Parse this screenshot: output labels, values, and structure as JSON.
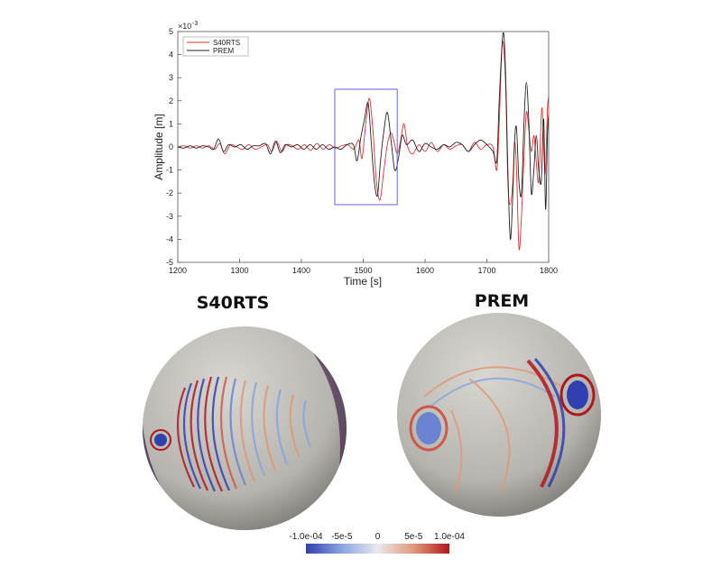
{
  "chart_data": [
    {
      "type": "line",
      "xlabel": "Time [s]",
      "ylabel": "Amplitude [m]",
      "exponent_label": "×10",
      "exponent_power": "-3",
      "xlim": [
        1200,
        1800
      ],
      "ylim": [
        -5,
        5
      ],
      "xticks": [
        "1200",
        "1300",
        "1400",
        "1500",
        "1600",
        "1700",
        "1800"
      ],
      "yticks": [
        "-5",
        "-4",
        "-3",
        "-2",
        "-1",
        "0",
        "1",
        "2",
        "3",
        "4",
        "5"
      ],
      "grid": false,
      "legend_position": "top-left",
      "highlight_box": {
        "x": [
          1454,
          1555
        ],
        "y": [
          -2.5,
          2.5
        ],
        "color": "#6666cc"
      },
      "series": [
        {
          "name": "S40RTS",
          "color": "#e03030",
          "points": [
            [
              1200,
              0
            ],
            [
              1210,
              0.05
            ],
            [
              1220,
              -0.05
            ],
            [
              1230,
              0.05
            ],
            [
              1240,
              -0.05
            ],
            [
              1250,
              0.05
            ],
            [
              1260,
              -0.1
            ],
            [
              1268,
              0.15
            ],
            [
              1276,
              -0.3
            ],
            [
              1285,
              0.1
            ],
            [
              1295,
              0
            ],
            [
              1305,
              -0.1
            ],
            [
              1315,
              0.1
            ],
            [
              1325,
              -0.1
            ],
            [
              1335,
              0
            ],
            [
              1345,
              0.1
            ],
            [
              1352,
              -0.2
            ],
            [
              1360,
              0.25
            ],
            [
              1368,
              -0.2
            ],
            [
              1376,
              0.1
            ],
            [
              1385,
              0.05
            ],
            [
              1395,
              -0.1
            ],
            [
              1405,
              0.1
            ],
            [
              1415,
              -0.15
            ],
            [
              1425,
              0.15
            ],
            [
              1435,
              -0.1
            ],
            [
              1445,
              0.1
            ],
            [
              1455,
              -0.05
            ],
            [
              1465,
              0.05
            ],
            [
              1475,
              0.1
            ],
            [
              1485,
              -0.1
            ],
            [
              1493,
              0.3
            ],
            [
              1498,
              -0.5
            ],
            [
              1504,
              1.0
            ],
            [
              1510,
              2.1
            ],
            [
              1516,
              0.6
            ],
            [
              1521,
              -1.4
            ],
            [
              1527,
              -2.3
            ],
            [
              1533,
              -1.1
            ],
            [
              1539,
              0.1
            ],
            [
              1545,
              0.6
            ],
            [
              1550,
              0.2
            ],
            [
              1555,
              -0.3
            ],
            [
              1560,
              0.2
            ],
            [
              1566,
              1.0
            ],
            [
              1572,
              0
            ],
            [
              1580,
              -0.3
            ],
            [
              1590,
              0.1
            ],
            [
              1600,
              -0.2
            ],
            [
              1610,
              0.2
            ],
            [
              1620,
              -0.2
            ],
            [
              1630,
              0.1
            ],
            [
              1640,
              -0.1
            ],
            [
              1650,
              0.05
            ],
            [
              1660,
              0.1
            ],
            [
              1670,
              -0.2
            ],
            [
              1680,
              0.2
            ],
            [
              1690,
              -0.1
            ],
            [
              1700,
              0.1
            ],
            [
              1710,
              0
            ],
            [
              1716,
              -1.0
            ],
            [
              1720,
              1.0
            ],
            [
              1725,
              4.5
            ],
            [
              1730,
              3.0
            ],
            [
              1734,
              -1.5
            ],
            [
              1738,
              -2.5
            ],
            [
              1742,
              -1.5
            ],
            [
              1745,
              0.2
            ],
            [
              1748,
              -1.0
            ],
            [
              1752,
              -4.4
            ],
            [
              1756,
              -3.0
            ],
            [
              1760,
              -0.5
            ],
            [
              1764,
              1.5
            ],
            [
              1768,
              0.7
            ],
            [
              1772,
              -0.2
            ],
            [
              1776,
              0.5
            ],
            [
              1779,
              -0.3
            ],
            [
              1784,
              -1.5
            ],
            [
              1789,
              1.7
            ],
            [
              1794,
              -1.2
            ],
            [
              1798,
              1.6
            ],
            [
              1800,
              2.2
            ]
          ]
        },
        {
          "name": "PREM",
          "color": "#222222",
          "points": [
            [
              1200,
              0
            ],
            [
              1210,
              -0.05
            ],
            [
              1220,
              0.05
            ],
            [
              1230,
              -0.05
            ],
            [
              1240,
              0.05
            ],
            [
              1250,
              0
            ],
            [
              1258,
              -0.1
            ],
            [
              1266,
              0.35
            ],
            [
              1274,
              -0.2
            ],
            [
              1282,
              0.1
            ],
            [
              1292,
              0
            ],
            [
              1302,
              0.1
            ],
            [
              1312,
              -0.1
            ],
            [
              1322,
              0.05
            ],
            [
              1332,
              0.05
            ],
            [
              1342,
              0.15
            ],
            [
              1350,
              -0.3
            ],
            [
              1358,
              0.25
            ],
            [
              1366,
              -0.25
            ],
            [
              1374,
              0.1
            ],
            [
              1384,
              0
            ],
            [
              1394,
              0.1
            ],
            [
              1404,
              -0.1
            ],
            [
              1414,
              0.1
            ],
            [
              1424,
              -0.1
            ],
            [
              1434,
              0.1
            ],
            [
              1444,
              -0.1
            ],
            [
              1454,
              0
            ],
            [
              1464,
              -0.1
            ],
            [
              1474,
              0.1
            ],
            [
              1484,
              0.1
            ],
            [
              1490,
              -0.6
            ],
            [
              1496,
              0.4
            ],
            [
              1502,
              1.2
            ],
            [
              1508,
              1.9
            ],
            [
              1513,
              0.2
            ],
            [
              1518,
              -1.5
            ],
            [
              1523,
              -2.1
            ],
            [
              1528,
              -0.6
            ],
            [
              1533,
              0.6
            ],
            [
              1539,
              1.5
            ],
            [
              1545,
              0.3
            ],
            [
              1551,
              -1.0
            ],
            [
              1557,
              -0.5
            ],
            [
              1563,
              0.5
            ],
            [
              1570,
              0.1
            ],
            [
              1580,
              0.3
            ],
            [
              1590,
              -0.2
            ],
            [
              1600,
              0.15
            ],
            [
              1610,
              0
            ],
            [
              1620,
              -0.1
            ],
            [
              1630,
              0.1
            ],
            [
              1640,
              0
            ],
            [
              1650,
              0.2
            ],
            [
              1660,
              0.1
            ],
            [
              1670,
              -0.2
            ],
            [
              1680,
              0.1
            ],
            [
              1690,
              0.3
            ],
            [
              1700,
              0.1
            ],
            [
              1710,
              -0.2
            ],
            [
              1716,
              -0.6
            ],
            [
              1720,
              2.0
            ],
            [
              1726,
              4.9
            ],
            [
              1730,
              3.5
            ],
            [
              1734,
              -1.0
            ],
            [
              1738,
              -4.0
            ],
            [
              1742,
              -2.0
            ],
            [
              1745,
              0.3
            ],
            [
              1748,
              0.8
            ],
            [
              1752,
              -1.5
            ],
            [
              1756,
              -2.0
            ],
            [
              1760,
              1.0
            ],
            [
              1764,
              2.8
            ],
            [
              1768,
              1.0
            ],
            [
              1772,
              -2.0
            ],
            [
              1776,
              -1.0
            ],
            [
              1780,
              0.5
            ],
            [
              1784,
              -1.0
            ],
            [
              1788,
              -1.5
            ],
            [
              1792,
              1.2
            ],
            [
              1795,
              -2.7
            ],
            [
              1798,
              0.5
            ],
            [
              1800,
              1.4
            ]
          ]
        }
      ]
    },
    {
      "type": "heatmap",
      "panels": [
        "S40RTS",
        "PREM"
      ],
      "colorbar": {
        "ticks": [
          "-1.0e-04",
          "-5e-5",
          "0",
          "5e-5",
          "1.0e-04"
        ],
        "range": [
          -0.0001,
          0.0001
        ],
        "colors": [
          "#3040b0",
          "#8aa4e0",
          "#e8e8ee",
          "#e09878",
          "#b01820"
        ]
      }
    }
  ]
}
